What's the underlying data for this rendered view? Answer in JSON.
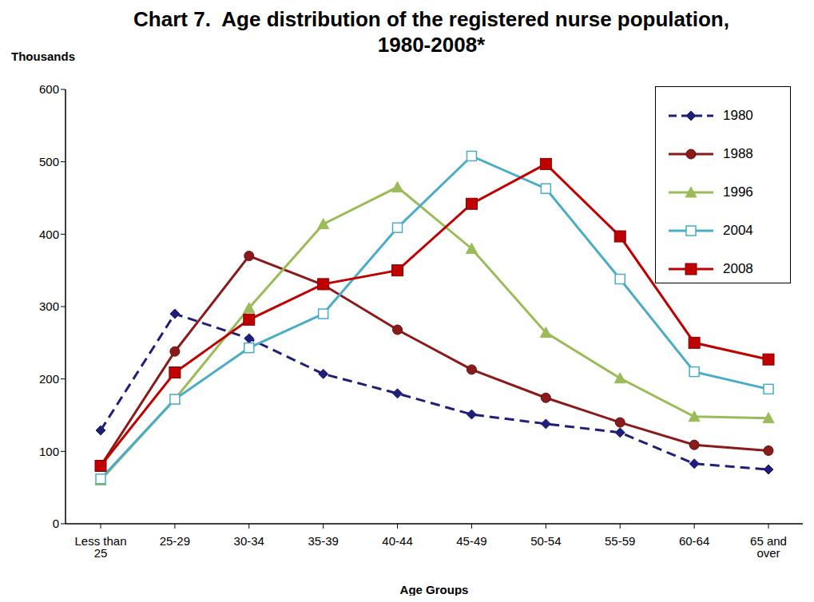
{
  "chart_data": {
    "type": "line",
    "title": "Chart 7.  Age distribution of the registered nurse population, 1980-2008*",
    "y_label": "Thousands",
    "x_label": "Age Groups",
    "categories": [
      "Less than 25",
      "25-29",
      "30-34",
      "35-39",
      "40-44",
      "45-49",
      "50-54",
      "55-59",
      "60-64",
      "65 and over"
    ],
    "ylim": [
      0,
      600
    ],
    "yticks": [
      0,
      100,
      200,
      300,
      400,
      500,
      600
    ],
    "grid": false,
    "legend": "upper right",
    "series": [
      {
        "name": "1980",
        "color": "#1f1f7a",
        "marker": "diamond",
        "line_style": "dashed",
        "values": [
          129,
          290,
          256,
          207,
          180,
          151,
          138,
          126,
          83,
          75
        ]
      },
      {
        "name": "1988",
        "color": "#8b1a1a",
        "marker": "circle",
        "line_style": "solid",
        "values": [
          80,
          238,
          370,
          330,
          268,
          213,
          174,
          140,
          109,
          101
        ]
      },
      {
        "name": "1996",
        "color": "#9bbb59",
        "marker": "triangle",
        "line_style": "solid",
        "values": [
          60,
          172,
          298,
          414,
          465,
          380,
          264,
          201,
          148,
          146
        ]
      },
      {
        "name": "2004",
        "color": "#4bacc6",
        "marker": "square_open",
        "line_style": "solid",
        "values": [
          62,
          172,
          243,
          290,
          409,
          508,
          463,
          338,
          210,
          186
        ]
      },
      {
        "name": "2008",
        "color": "#c00000",
        "marker": "square",
        "line_style": "solid",
        "values": [
          80,
          209,
          282,
          331,
          350,
          442,
          497,
          397,
          250,
          227
        ]
      }
    ]
  }
}
